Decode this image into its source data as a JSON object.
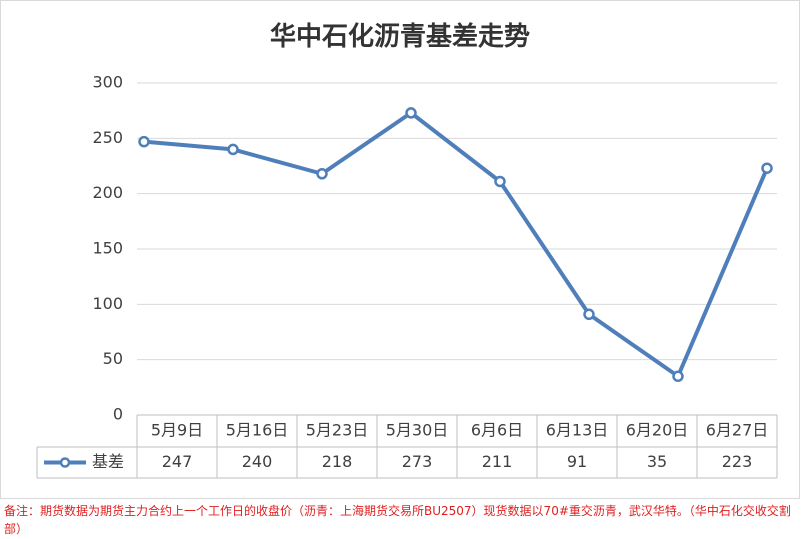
{
  "chart_data": {
    "type": "line",
    "title": "华中石化沥青基差走势",
    "categories": [
      "5月9日",
      "5月16日",
      "5月23日",
      "5月30日",
      "6月6日",
      "6月13日",
      "6月20日",
      "6月27日"
    ],
    "series": [
      {
        "name": "基差",
        "color": "#4f7fbb",
        "values": [
          247,
          240,
          218,
          273,
          211,
          91,
          35,
          223
        ]
      }
    ],
    "ylim": [
      0,
      300
    ],
    "yticks": [
      0,
      50,
      100,
      150,
      200,
      250,
      300
    ],
    "grid": true
  },
  "note": "备注：期货数据为期货主力合约上一个工作日的收盘价（沥青：上海期货交易所BU2507）现货数据以70#重交沥青，武汉华特。（华中石化交收交割部）"
}
